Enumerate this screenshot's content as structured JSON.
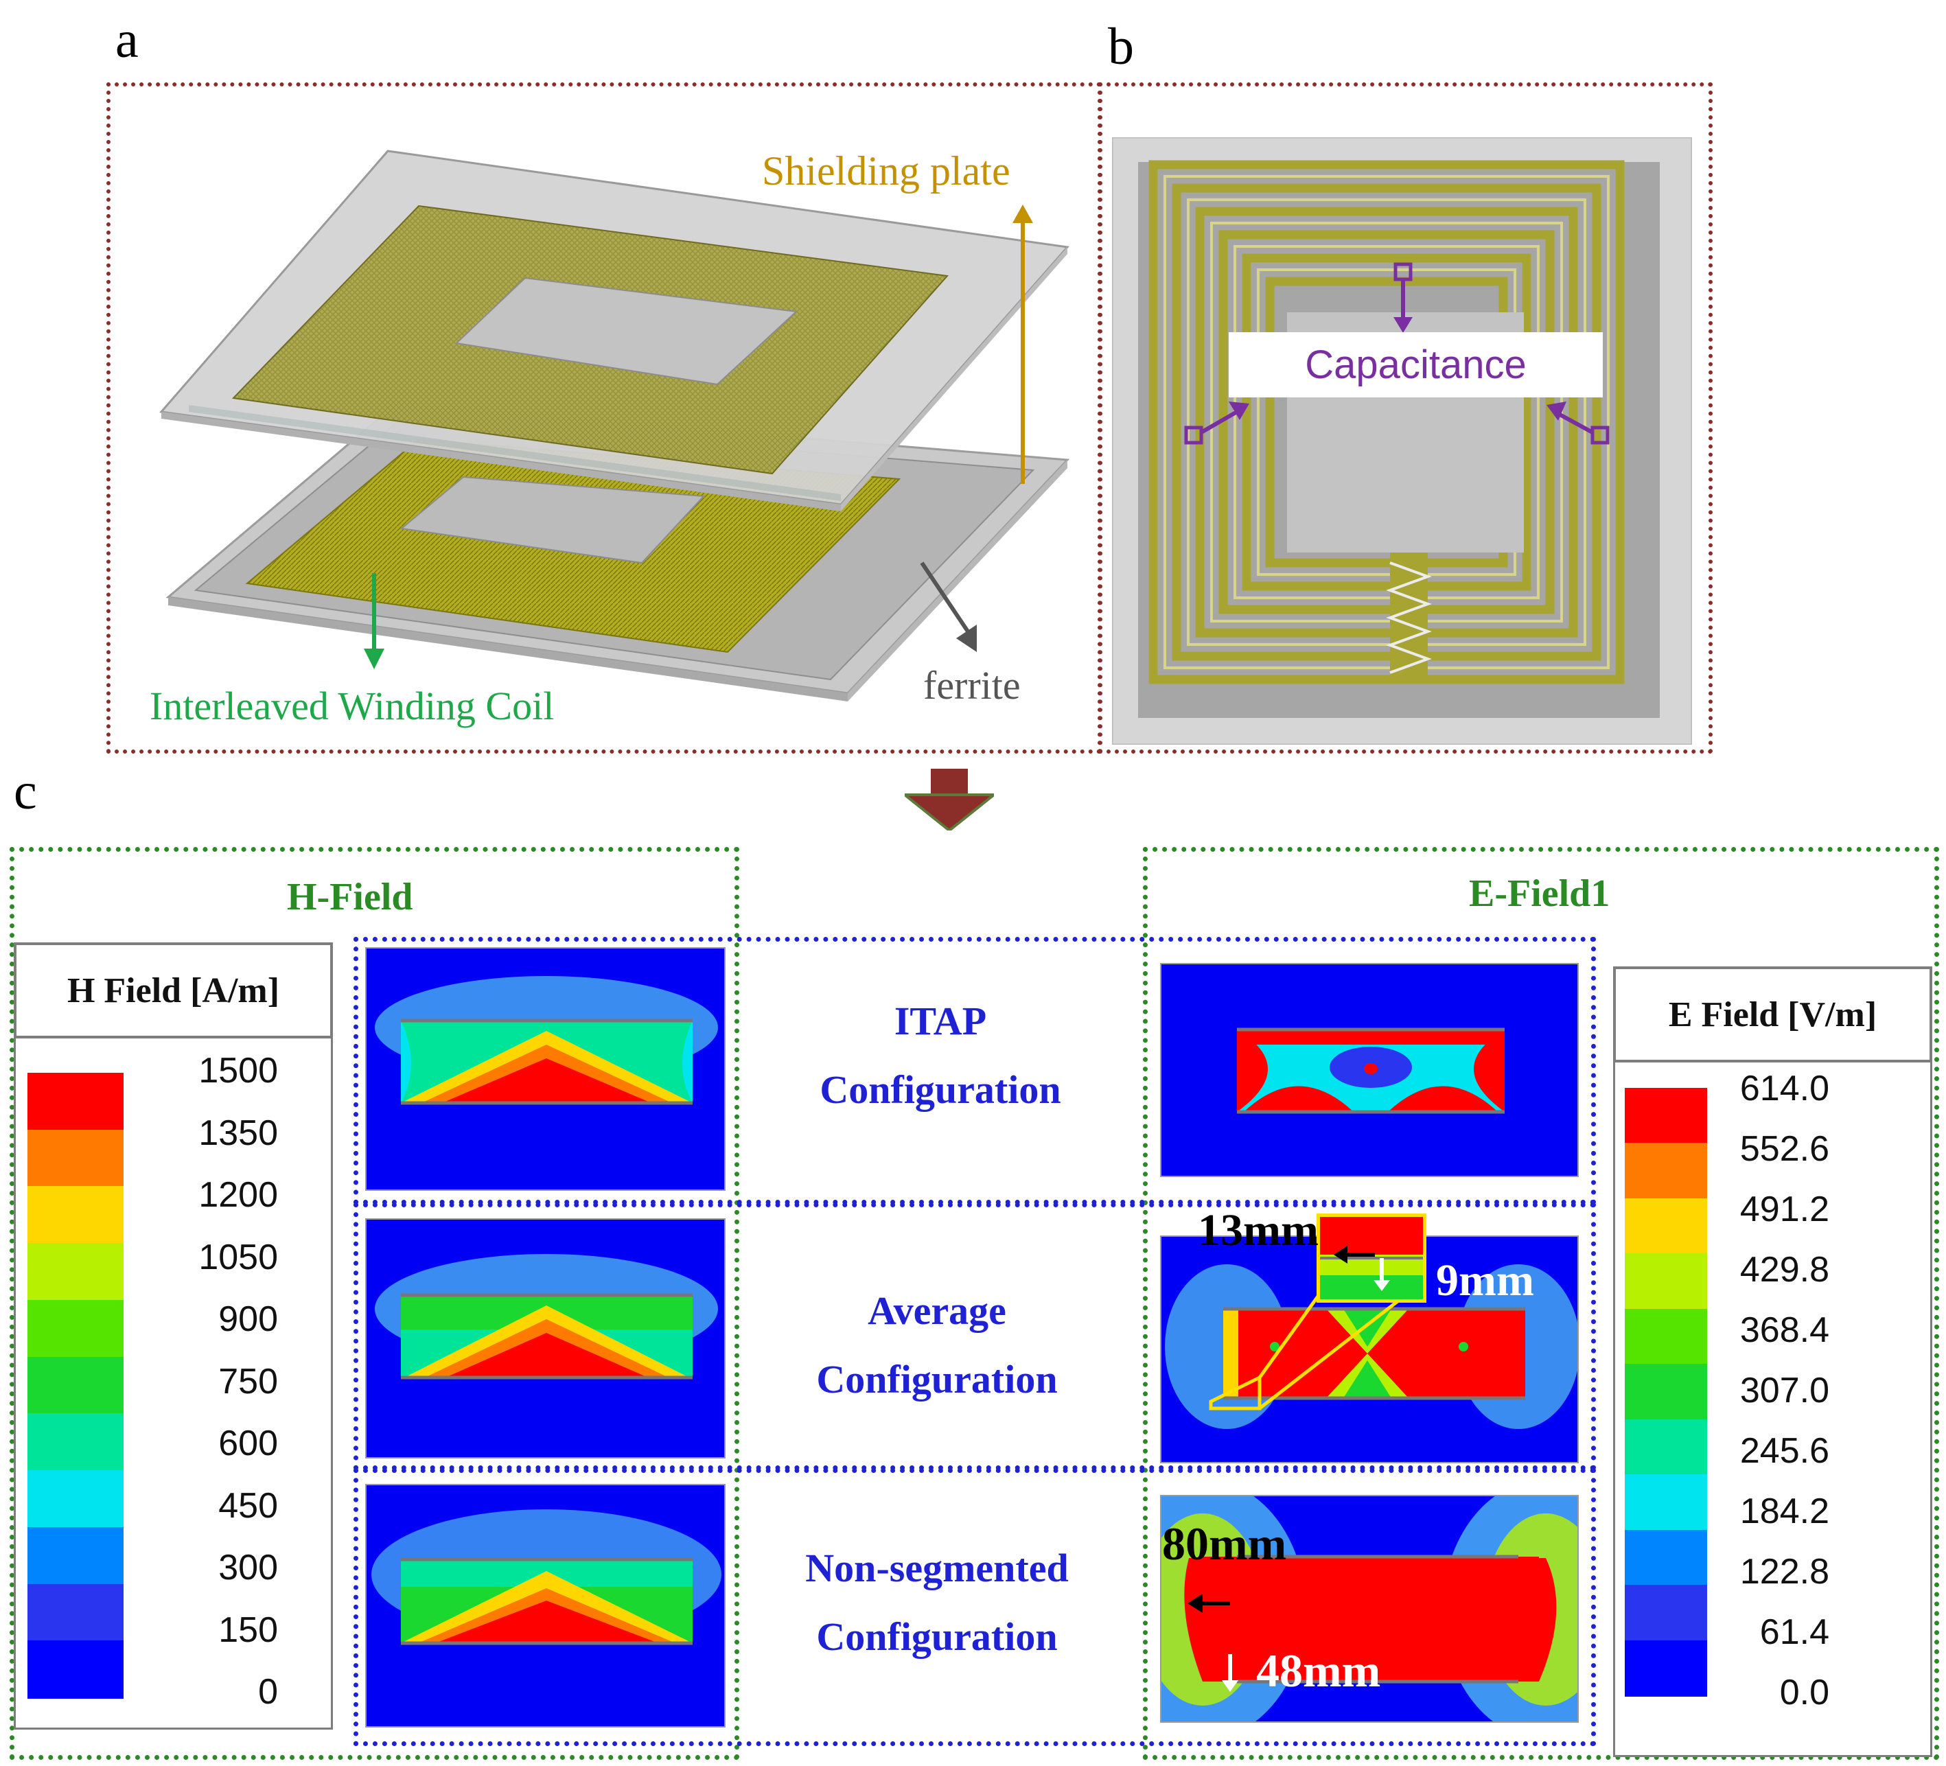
{
  "panels": {
    "a": {
      "letter": "a",
      "labels": {
        "shielding": "Shielding plate",
        "coil": "Interleaved Winding Coil",
        "ferrite": "ferrite"
      }
    },
    "b": {
      "letter": "b",
      "capacitance": "Capacitance"
    },
    "c": {
      "letter": "c"
    }
  },
  "colors": {
    "shielding": "#c49200",
    "coil": "#1ea84a",
    "ferrite": "#555555",
    "capacitance": "#7a2fa0",
    "accent_red": "#8b2e2a",
    "green_box": "#2c8a26",
    "blue_box": "#1f22d4"
  },
  "hfield": {
    "title": "H-Field",
    "scale_title": "H Field [A/m]",
    "ticks": [
      "1500",
      "1350",
      "1200",
      "1050",
      "900",
      "750",
      "600",
      "450",
      "300",
      "150",
      "0"
    ]
  },
  "efield": {
    "title": "E-Field1",
    "scale_title": "E Field [V/m]",
    "ticks": [
      "614.0",
      "552.6",
      "491.2",
      "429.8",
      "368.4",
      "307.0",
      "245.6",
      "184.2",
      "122.8",
      "61.4",
      "0.0"
    ]
  },
  "configs": [
    {
      "line1": "ITAP",
      "line2": "Configuration"
    },
    {
      "line1": "Average",
      "line2": "Configuration"
    },
    {
      "line1": "Non-segmented",
      "line2": "Configuration"
    }
  ],
  "annotations": {
    "avg_x": "13mm",
    "avg_y": "9mm",
    "non_x": "80mm",
    "non_y": "48mm"
  },
  "colorbar": [
    "#ff0000",
    "#ff7a00",
    "#ffd700",
    "#b7f000",
    "#55e400",
    "#1ad82f",
    "#00e49a",
    "#00e4f0",
    "#0085ff",
    "#2a35f0",
    "#0000ff"
  ]
}
